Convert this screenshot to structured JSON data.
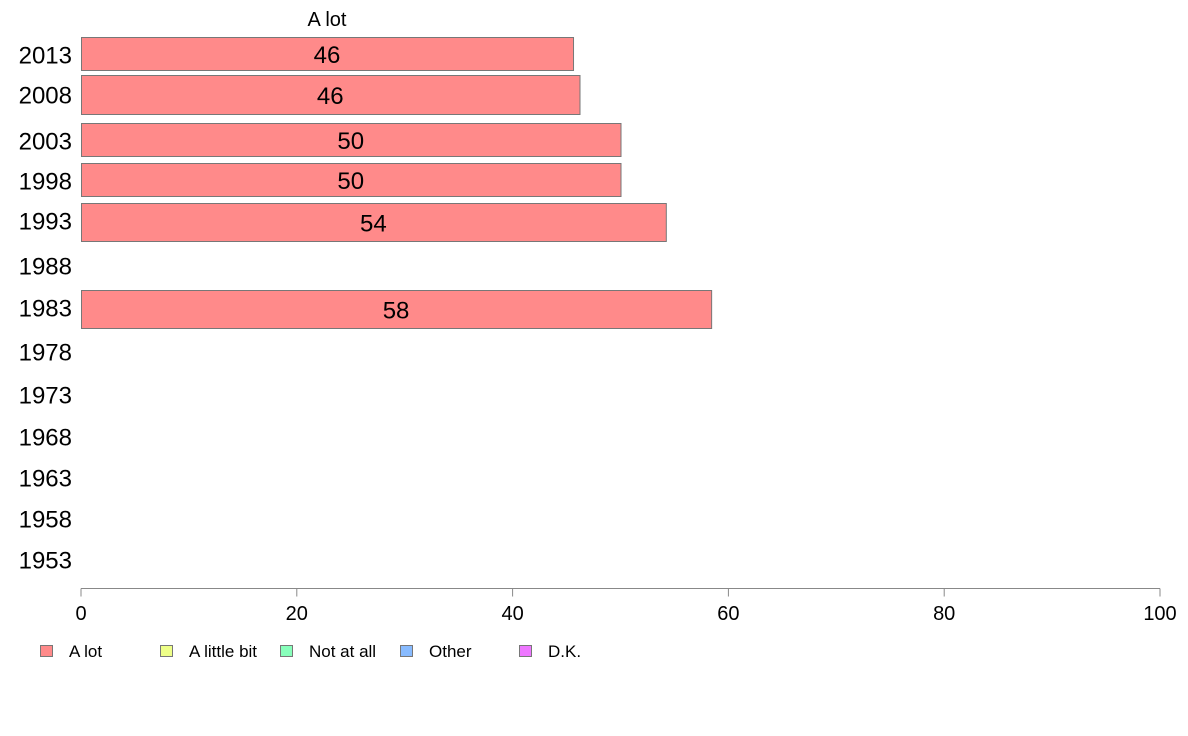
{
  "chart_data": {
    "type": "bar",
    "orientation": "horizontal",
    "categories": [
      "2013",
      "2008",
      "2003",
      "1998",
      "1993",
      "1988",
      "1983",
      "1978",
      "1973",
      "1968",
      "1963",
      "1958",
      "1953"
    ],
    "series": [
      {
        "name": "A lot",
        "values": [
          45.6,
          46.2,
          50.0,
          50.0,
          54.2,
          null,
          58.4,
          null,
          null,
          null,
          null,
          null,
          null
        ],
        "labels": [
          "46",
          "46",
          "50",
          "50",
          "54",
          "",
          "58",
          "",
          "",
          "",
          "",
          "",
          ""
        ],
        "color": "#ff8a8a"
      },
      {
        "name": "A little bit",
        "values": [
          null,
          null,
          null,
          null,
          null,
          null,
          null,
          null,
          null,
          null,
          null,
          null,
          null
        ],
        "color": "#eeff88"
      },
      {
        "name": "Not at all",
        "values": [
          null,
          null,
          null,
          null,
          null,
          null,
          null,
          null,
          null,
          null,
          null,
          null,
          null
        ],
        "color": "#88ffbb"
      },
      {
        "name": "Other",
        "values": [
          null,
          null,
          null,
          null,
          null,
          null,
          null,
          null,
          null,
          null,
          null,
          null,
          null
        ],
        "color": "#88bbff"
      },
      {
        "name": "D.K.",
        "values": [
          null,
          null,
          null,
          null,
          null,
          null,
          null,
          null,
          null,
          null,
          null,
          null,
          null
        ],
        "color": "#ee77ff"
      }
    ],
    "panel_title": "A lot",
    "xlim": [
      0,
      100
    ],
    "xticks": [
      "0",
      "20",
      "40",
      "60",
      "80",
      "100"
    ],
    "grid": false,
    "legend_position": "bottom",
    "colors": {
      "bar_stroke": "#777777",
      "axis": "#888888"
    }
  }
}
